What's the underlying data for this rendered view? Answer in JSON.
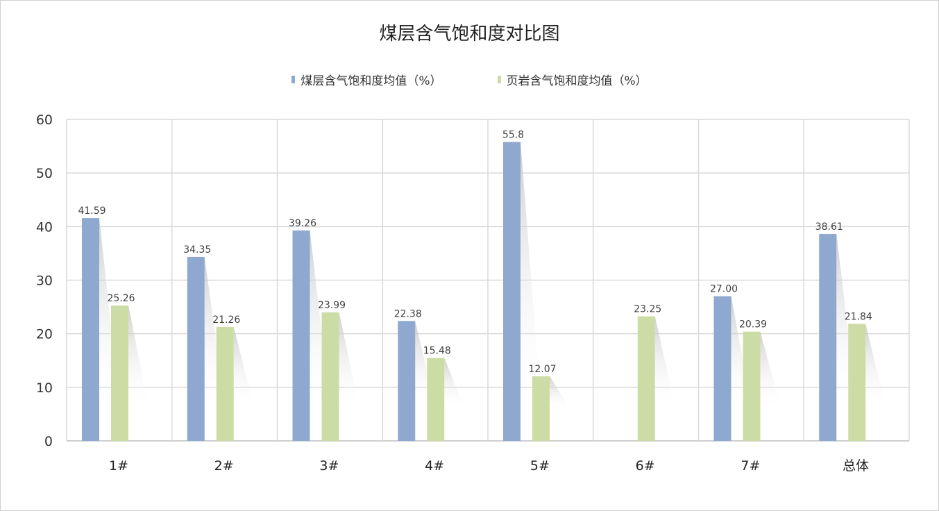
{
  "chart_data": {
    "type": "bar",
    "title": "煤层含气饱和度对比图",
    "categories": [
      "1#",
      "2#",
      "3#",
      "4#",
      "5#",
      "6#",
      "7#",
      "总体"
    ],
    "series": [
      {
        "name": "煤层含气饱和度均值（%）",
        "color": "#8FA8CF",
        "values": [
          41.59,
          34.35,
          39.26,
          22.38,
          55.8,
          null,
          27.0,
          38.61
        ],
        "labels": [
          "41.59",
          "34.35",
          "39.26",
          "22.38",
          "55.8",
          "",
          "27.00",
          "38.61"
        ]
      },
      {
        "name": "页岩含气饱和度均值（%）",
        "color": "#CBDDA5",
        "values": [
          25.26,
          21.26,
          23.99,
          15.48,
          12.07,
          23.25,
          20.39,
          21.84
        ],
        "labels": [
          "25.26",
          "21.26",
          "23.99",
          "15.48",
          "12.07",
          "23.25",
          "20.39",
          "21.84"
        ]
      }
    ],
    "ylim": [
      0,
      60
    ],
    "yticks": [
      "0",
      "10",
      "20",
      "30",
      "40",
      "50",
      "60"
    ],
    "grid": true,
    "legend_position": "top"
  }
}
